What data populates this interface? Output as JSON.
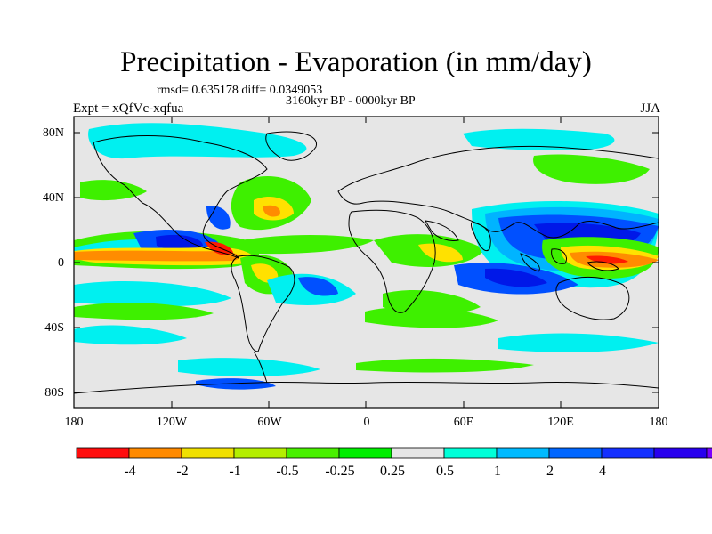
{
  "title": "Precipitation - Evaporation (in mm/day)",
  "stats": "rmsd= 0.635178  diff= 0.0349053",
  "period": "3160kyr BP - 0000kyr BP",
  "experiment": "Expt = xQfVc-xqfua",
  "season": "JJA",
  "map": {
    "lat_labels": [
      "80N",
      "40N",
      "0",
      "40S",
      "80S"
    ],
    "lon_labels": [
      "180",
      "120W",
      "60W",
      "0",
      "60E",
      "120E",
      "180"
    ],
    "background_color": "#e6e6e6"
  },
  "colorbar": {
    "labels": [
      "-4",
      "-2",
      "-1",
      "-0.5",
      "-0.25",
      "0.25",
      "0.5",
      "1",
      "2",
      "4"
    ],
    "colors": [
      "#ff0d0d",
      "#ff8a00",
      "#f0e000",
      "#b4ee00",
      "#48f000",
      "#00ee00",
      "#e6e6e6",
      "#00ffd8",
      "#00baff",
      "#0066ff",
      "#1430ff",
      "#2800ee",
      "#7a00ff"
    ]
  },
  "legend_colors": {
    "red": "#ff1a00",
    "orange": "#ff8c00",
    "yellow": "#ffe100",
    "lime": "#a8f000",
    "green": "#3ef000",
    "cyan": "#00f0f0",
    "sky": "#00b4ff",
    "blue": "#0050ff",
    "navy": "#0018e8",
    "violet": "#7a00ff"
  }
}
